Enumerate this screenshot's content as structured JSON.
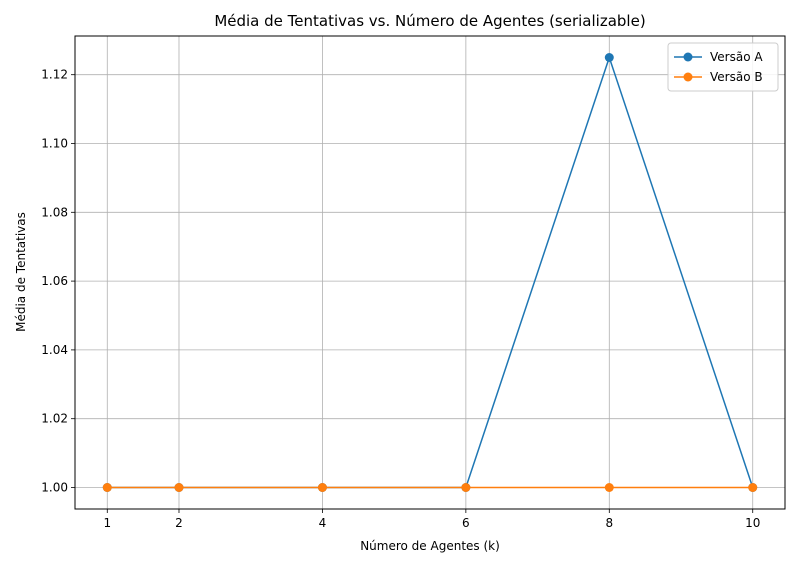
{
  "chart_data": {
    "type": "line",
    "title": "Média de Tentativas vs. Número de Agentes (serializable)",
    "xlabel": "Número de Agentes (k)",
    "ylabel": "Média de Tentativas",
    "x": [
      1,
      2,
      4,
      6,
      8,
      10
    ],
    "xticks": [
      "1",
      "2",
      "4",
      "6",
      "8",
      "10"
    ],
    "yticks": [
      "1.00",
      "1.02",
      "1.04",
      "1.06",
      "1.08",
      "1.10",
      "1.12"
    ],
    "xlim": [
      0.55,
      10.45
    ],
    "ylim": [
      0.99375,
      1.13125
    ],
    "grid": true,
    "legend_position": "top-right",
    "series": [
      {
        "name": "Versão A",
        "color": "#1f77b4",
        "values": [
          1.0,
          1.0,
          1.0,
          1.0,
          1.125,
          1.0
        ]
      },
      {
        "name": "Versão B",
        "color": "#ff7f0e",
        "values": [
          1.0,
          1.0,
          1.0,
          1.0,
          1.0,
          1.0
        ]
      }
    ]
  }
}
